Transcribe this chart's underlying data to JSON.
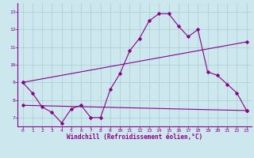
{
  "line1_x": [
    0,
    1,
    2,
    3,
    4,
    5,
    6,
    7,
    8,
    9,
    10,
    11,
    12,
    13,
    14,
    15,
    16,
    17,
    18,
    19,
    20,
    21,
    22,
    23
  ],
  "line1_y": [
    9.0,
    8.4,
    7.6,
    7.3,
    6.7,
    7.5,
    7.7,
    7.0,
    7.0,
    8.6,
    9.5,
    10.8,
    11.5,
    12.5,
    12.9,
    12.9,
    12.2,
    11.6,
    12.0,
    9.6,
    9.4,
    8.9,
    8.4,
    7.4
  ],
  "line2_x": [
    0,
    23
  ],
  "line2_y": [
    9.0,
    11.3
  ],
  "line3_x": [
    0,
    23
  ],
  "line3_y": [
    7.7,
    7.4
  ],
  "line_color": "#880088",
  "bg_color": "#cce8ee",
  "grid_color": "#aacccc",
  "xlabel": "Windchill (Refroidissement éolien,°C)",
  "xlim": [
    -0.5,
    23.5
  ],
  "ylim": [
    6.5,
    13.5
  ],
  "yticks": [
    7,
    8,
    9,
    10,
    11,
    12,
    13
  ],
  "xticks": [
    0,
    1,
    2,
    3,
    4,
    5,
    6,
    7,
    8,
    9,
    10,
    11,
    12,
    13,
    14,
    15,
    16,
    17,
    18,
    19,
    20,
    21,
    22,
    23
  ],
  "tick_fontsize": 4.5,
  "xlabel_fontsize": 5.5
}
